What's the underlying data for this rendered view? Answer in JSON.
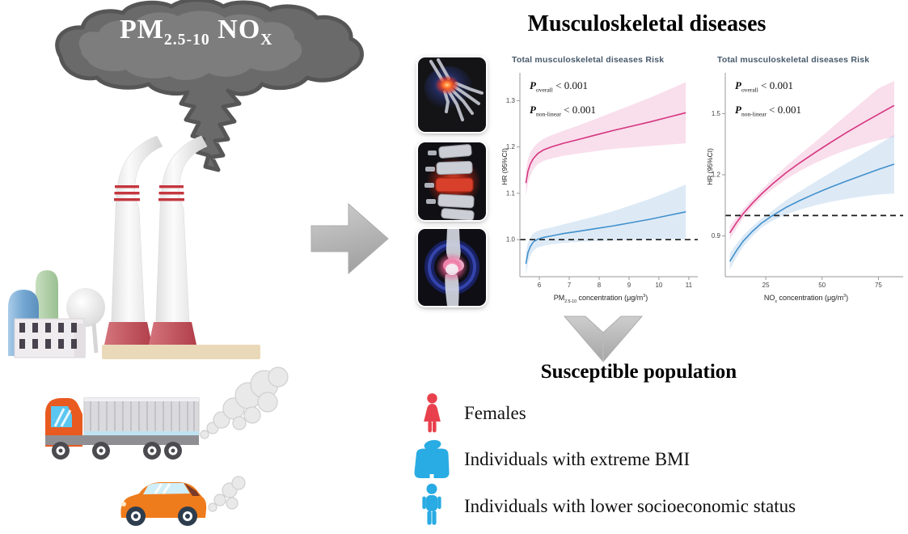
{
  "header": {
    "title": "Musculoskeletal diseases"
  },
  "pollution": {
    "cloud_label_parts": [
      [
        "t",
        "PM"
      ],
      [
        "sub",
        "2.5-10"
      ],
      [
        "t",
        "  NO"
      ],
      [
        "sub",
        "X"
      ]
    ],
    "scene_elements": [
      "smoke-cloud",
      "smoke-plume",
      "smokestacks",
      "factory-buildings",
      "container-truck",
      "car",
      "exhaust-smoke"
    ]
  },
  "medical_images": [
    "inflamed-wrist-joint",
    "inflamed-spine",
    "inflamed-knee"
  ],
  "chart_data": [
    {
      "type": "line",
      "title": "Total musculoskeletal diseases Risk",
      "annotations": [
        [
          [
            "i",
            "P"
          ],
          [
            "sub",
            "overall"
          ],
          [
            "t",
            " < 0.001"
          ]
        ],
        [
          [
            "i",
            "P"
          ],
          [
            "sub",
            "non-linear"
          ],
          [
            "t",
            " < 0.001"
          ]
        ]
      ],
      "xlabel_parts": [
        [
          "t",
          "PM"
        ],
        [
          "sub",
          "2.5-10"
        ],
        [
          "t",
          " concentration (μg/m"
        ],
        [
          "sup",
          "3"
        ],
        [
          "t",
          ")"
        ]
      ],
      "ylabel": "HR (95%CI)",
      "xlim": [
        5.35,
        11.3
      ],
      "ylim": [
        0.92,
        1.36
      ],
      "xticks": [
        6,
        7,
        8,
        9,
        10,
        11
      ],
      "yticks": [
        1.0,
        1.1,
        1.2,
        1.3
      ],
      "reference_line_y": 1.0,
      "grid": false,
      "legend": "none",
      "series": [
        {
          "name": "pink_series",
          "color": "#d5357f",
          "band_color": "rgba(222,73,152,0.18)",
          "x": [
            5.55,
            5.62,
            5.7,
            5.8,
            5.95,
            6.15,
            6.4,
            6.8,
            7.3,
            7.9,
            8.5,
            9.1,
            9.7,
            10.3,
            10.9
          ],
          "y": [
            1.122,
            1.148,
            1.163,
            1.175,
            1.186,
            1.194,
            1.2,
            1.208,
            1.216,
            1.226,
            1.236,
            1.245,
            1.254,
            1.264,
            1.274
          ],
          "y_lo": [
            1.094,
            1.122,
            1.138,
            1.152,
            1.163,
            1.17,
            1.175,
            1.181,
            1.186,
            1.191,
            1.196,
            1.199,
            1.202,
            1.205,
            1.208
          ],
          "y_hi": [
            1.15,
            1.174,
            1.188,
            1.198,
            1.209,
            1.218,
            1.225,
            1.235,
            1.246,
            1.261,
            1.276,
            1.291,
            1.306,
            1.323,
            1.34
          ]
        },
        {
          "name": "blue_series",
          "color": "#4190cc",
          "band_color": "rgba(120,170,220,0.25)",
          "x": [
            5.55,
            5.62,
            5.7,
            5.8,
            5.95,
            6.15,
            6.4,
            6.8,
            7.3,
            7.9,
            8.5,
            9.1,
            9.7,
            10.3,
            10.9
          ],
          "y": [
            0.948,
            0.972,
            0.985,
            0.995,
            1.001,
            1.005,
            1.008,
            1.013,
            1.018,
            1.024,
            1.03,
            1.037,
            1.044,
            1.052,
            1.06
          ],
          "y_lo": [
            0.924,
            0.95,
            0.965,
            0.976,
            0.983,
            0.987,
            0.99,
            0.993,
            0.995,
            0.997,
            0.998,
            0.999,
            1.0,
            1.001,
            1.001
          ],
          "y_hi": [
            0.972,
            0.994,
            1.005,
            1.014,
            1.019,
            1.023,
            1.026,
            1.033,
            1.041,
            1.051,
            1.062,
            1.075,
            1.088,
            1.103,
            1.119
          ]
        }
      ]
    },
    {
      "type": "line",
      "title": "Total musculoskeletal diseases Risk",
      "annotations": [
        [
          [
            "i",
            "P"
          ],
          [
            "sub",
            "overall"
          ],
          [
            "t",
            " < 0.001"
          ]
        ],
        [
          [
            "i",
            "P"
          ],
          [
            "sub",
            "non-linear"
          ],
          [
            "t",
            " < 0.001"
          ]
        ]
      ],
      "xlabel_parts": [
        [
          "t",
          "NO"
        ],
        [
          "sub",
          "x"
        ],
        [
          "t",
          " concentration (μg/m"
        ],
        [
          "sup",
          "3"
        ],
        [
          "t",
          ")"
        ]
      ],
      "ylabel": "HR (95%CI)",
      "xlim": [
        7,
        86
      ],
      "ylim": [
        0.7,
        1.7
      ],
      "xticks": [
        25,
        50,
        75
      ],
      "yticks": [
        0.9,
        1.2,
        1.5
      ],
      "reference_line_y": 1.0,
      "grid": false,
      "legend": "none",
      "series": [
        {
          "name": "pink_series",
          "color": "#d5357f",
          "band_color": "rgba(222,73,152,0.18)",
          "x": [
            9,
            12,
            15,
            19,
            23,
            28,
            34,
            40,
            47,
            54,
            61,
            68,
            75,
            82
          ],
          "y": [
            0.915,
            0.965,
            1.01,
            1.06,
            1.105,
            1.155,
            1.21,
            1.258,
            1.31,
            1.36,
            1.408,
            1.453,
            1.497,
            1.54
          ],
          "y_lo": [
            0.882,
            0.938,
            0.988,
            1.04,
            1.085,
            1.13,
            1.178,
            1.218,
            1.258,
            1.292,
            1.322,
            1.348,
            1.37,
            1.385
          ],
          "y_hi": [
            0.948,
            0.992,
            1.032,
            1.08,
            1.125,
            1.18,
            1.242,
            1.298,
            1.362,
            1.428,
            1.494,
            1.558,
            1.624,
            1.66
          ]
        },
        {
          "name": "blue_series",
          "color": "#4190cc",
          "band_color": "rgba(120,170,220,0.25)",
          "x": [
            9,
            12,
            15,
            19,
            23,
            28,
            34,
            40,
            47,
            54,
            61,
            68,
            75,
            82
          ],
          "y": [
            0.775,
            0.828,
            0.875,
            0.922,
            0.962,
            1.0,
            1.04,
            1.073,
            1.108,
            1.14,
            1.17,
            1.198,
            1.226,
            1.252
          ],
          "y_lo": [
            0.736,
            0.795,
            0.848,
            0.898,
            0.94,
            0.975,
            1.005,
            1.028,
            1.05,
            1.068,
            1.082,
            1.094,
            1.103,
            1.108
          ],
          "y_hi": [
            0.814,
            0.861,
            0.902,
            0.946,
            0.984,
            1.025,
            1.075,
            1.118,
            1.166,
            1.212,
            1.258,
            1.302,
            1.349,
            1.396
          ]
        }
      ]
    }
  ],
  "susceptible": {
    "title": "Susceptible population",
    "items": [
      {
        "icon": "female-icon",
        "color": "#e8414d",
        "label": "Females"
      },
      {
        "icon": "obese-person-icon",
        "color": "#29abe3",
        "label": "Individuals with extreme BMI"
      },
      {
        "icon": "thin-person-icon",
        "color": "#29abe3",
        "label": "Individuals with lower socioeconomic status"
      }
    ]
  },
  "colors": {
    "smoke": "#6a6a6a",
    "smoke_outline": "#565656",
    "arrow": "#b5b5b5",
    "chimney_stripe": "#c4373f",
    "chart_title": "#47596a"
  }
}
